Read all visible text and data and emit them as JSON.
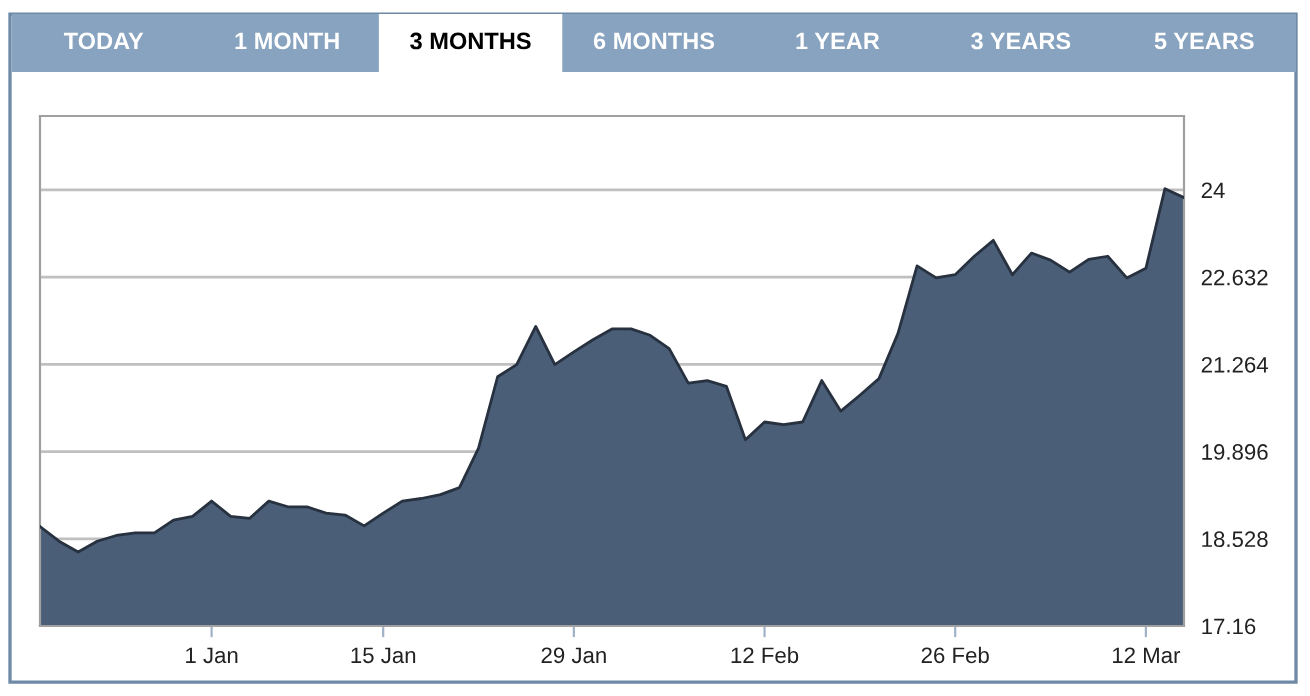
{
  "chart_data": {
    "type": "area",
    "annotations": [
      "TODAY",
      "1 MONTH",
      "3 MONTHS",
      "6 MONTHS",
      "1 YEAR",
      "3 YEARS",
      "5 YEARS"
    ],
    "categories": [
      null,
      null,
      null,
      null,
      null,
      null,
      null,
      null,
      null,
      "1 Jan",
      null,
      null,
      null,
      null,
      null,
      null,
      null,
      null,
      "15 Jan",
      null,
      null,
      null,
      null,
      null,
      null,
      null,
      null,
      null,
      "29 Jan",
      null,
      null,
      null,
      null,
      null,
      null,
      null,
      null,
      null,
      "12 Feb",
      null,
      null,
      null,
      null,
      null,
      null,
      null,
      null,
      null,
      "26 Feb",
      null,
      null,
      null,
      null,
      null,
      null,
      null,
      null,
      null,
      "12 Mar",
      null,
      null
    ],
    "series": [
      {
        "color": "#4a5e78",
        "values": [
          18.72,
          18.49,
          18.32,
          18.49,
          18.58,
          18.62,
          18.62,
          18.82,
          18.88,
          19.12,
          18.88,
          18.85,
          19.12,
          19.03,
          19.03,
          18.93,
          18.9,
          18.73,
          18.93,
          19.12,
          19.16,
          19.22,
          19.33,
          19.95,
          21.07,
          21.26,
          21.86,
          21.26,
          21.46,
          21.65,
          21.82,
          21.82,
          21.72,
          21.51,
          20.97,
          21.01,
          20.92,
          20.08,
          20.36,
          20.32,
          20.36,
          21.01,
          20.53,
          20.78,
          21.04,
          21.75,
          22.81,
          22.62,
          22.67,
          22.96,
          23.21,
          22.67,
          23.01,
          22.9,
          22.71,
          22.91,
          22.96,
          22.62,
          22.77,
          24.02,
          23.88
        ]
      }
    ],
    "ylim": [
      17.16,
      25.16
    ],
    "yticks": [
      17.16,
      18.528,
      19.896,
      21.264,
      22.632,
      24
    ],
    "grid": "y",
    "legend": false
  }
}
